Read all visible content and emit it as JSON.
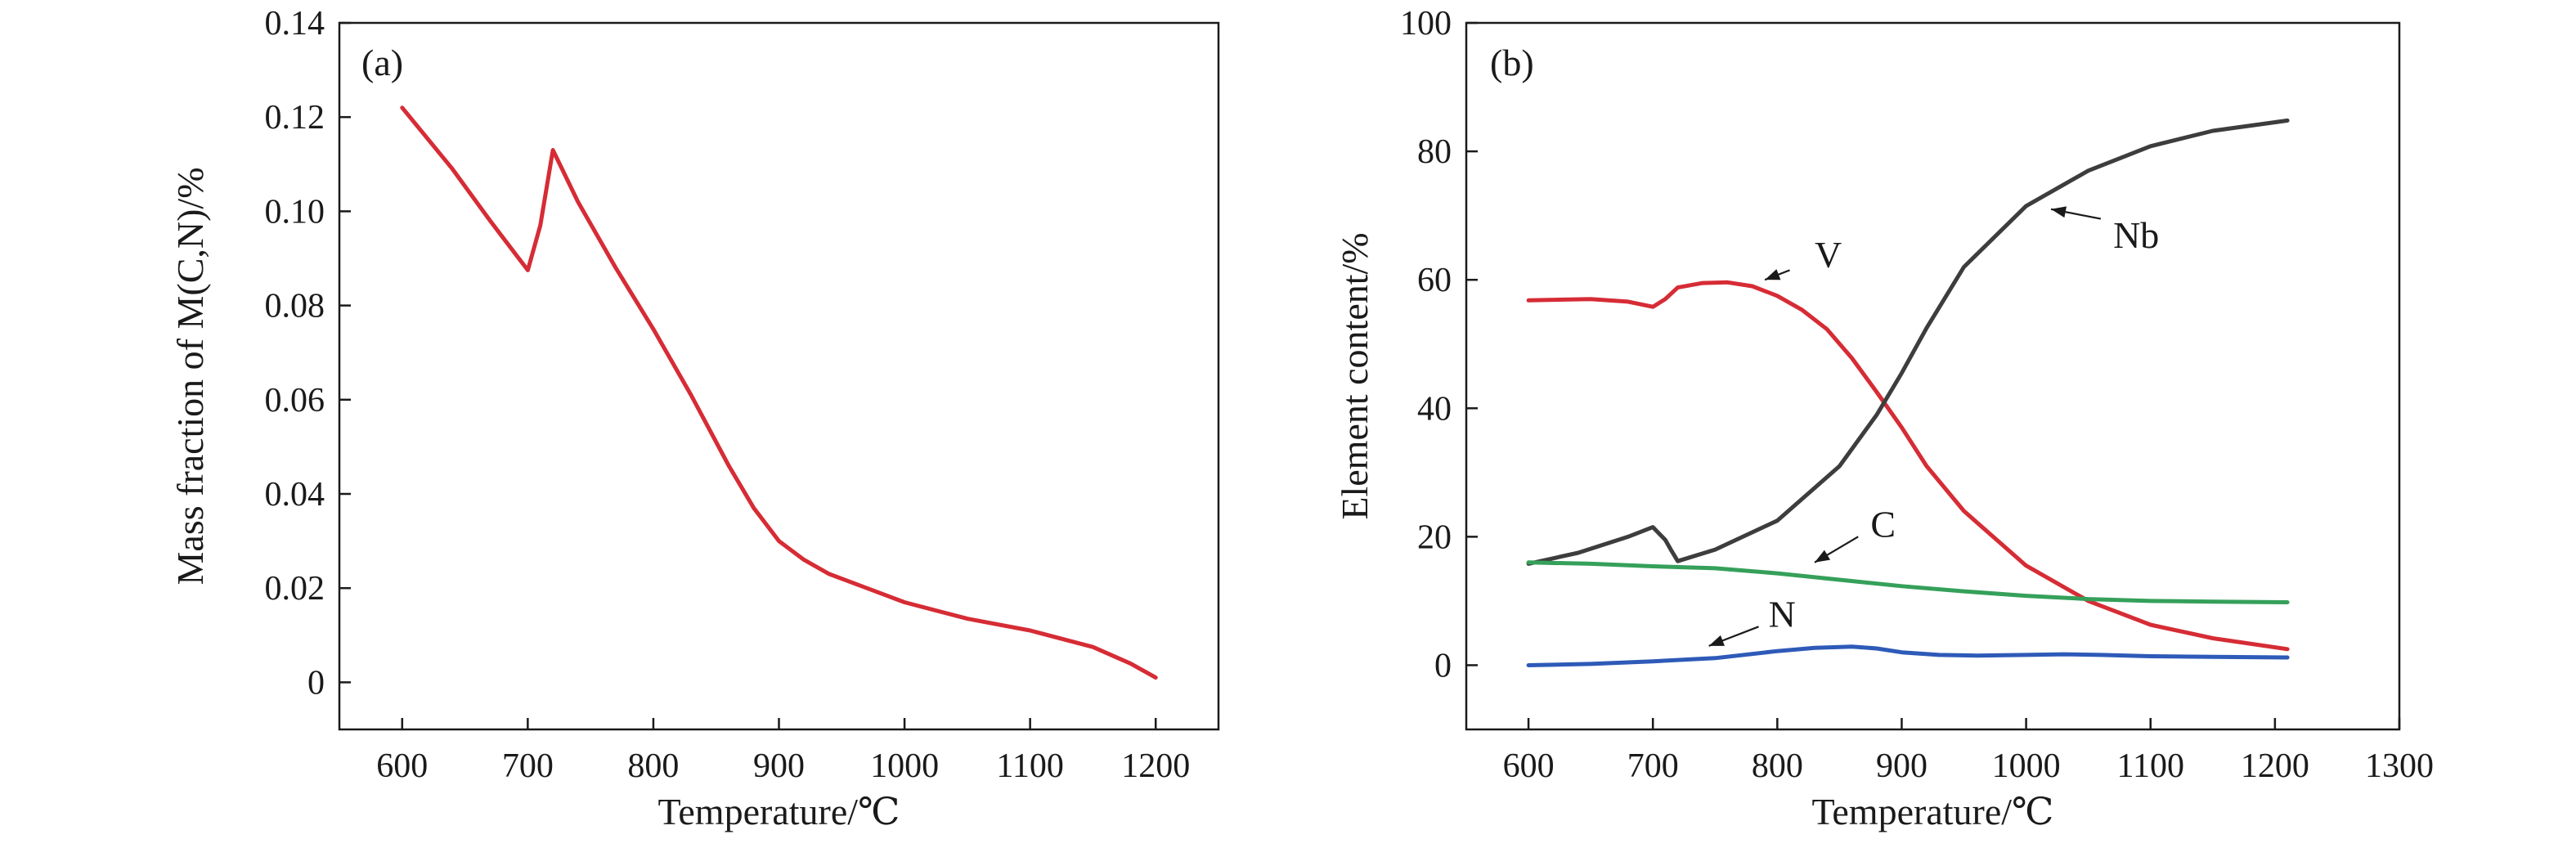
{
  "chart_data": [
    {
      "type": "line",
      "panel_label": "(a)",
      "xlabel": "Temperature/℃",
      "ylabel": "Mass fraction of M(C,N)/%",
      "xlim": [
        550,
        1250
      ],
      "ylim": [
        -0.01,
        0.14
      ],
      "xticks": [
        600,
        700,
        800,
        900,
        1000,
        1100,
        1200
      ],
      "xtick_labels": [
        "600",
        "700",
        "800",
        "900",
        "1000",
        "1100",
        "1200"
      ],
      "yticks": [
        0,
        0.02,
        0.04,
        0.06,
        0.08,
        0.1,
        0.12,
        0.14
      ],
      "ytick_labels": [
        "0",
        "0.02",
        "0.04",
        "0.06",
        "0.08",
        "0.10",
        "0.12",
        "0.14"
      ],
      "grid": false,
      "series": [
        {
          "color": "#d62c35",
          "x": [
            600,
            640,
            670,
            700,
            710,
            715,
            720,
            740,
            770,
            800,
            830,
            860,
            880,
            900,
            920,
            940,
            970,
            1000,
            1050,
            1100,
            1150,
            1180,
            1200
          ],
          "y": [
            0.122,
            0.109,
            0.098,
            0.0875,
            0.097,
            0.105,
            0.113,
            0.102,
            0.088,
            0.075,
            0.061,
            0.046,
            0.037,
            0.03,
            0.026,
            0.023,
            0.02,
            0.017,
            0.0135,
            0.011,
            0.0075,
            0.004,
            0.001
          ]
        }
      ]
    },
    {
      "type": "line",
      "panel_label": "(b)",
      "xlabel": "Temperature/℃",
      "ylabel": "Element content/%",
      "xlim": [
        550,
        1300
      ],
      "ylim": [
        -10,
        100
      ],
      "xticks": [
        600,
        700,
        800,
        900,
        1000,
        1100,
        1200,
        1300
      ],
      "xtick_labels": [
        "600",
        "700",
        "800",
        "900",
        "1000",
        "1100",
        "1200",
        "1300"
      ],
      "yticks": [
        0,
        20,
        40,
        60,
        80,
        100
      ],
      "ytick_labels": [
        "0",
        "20",
        "40",
        "60",
        "80",
        "100"
      ],
      "grid": false,
      "series": [
        {
          "name": "V",
          "color": "#d62c35",
          "x": [
            600,
            650,
            680,
            700,
            710,
            720,
            740,
            760,
            780,
            800,
            820,
            840,
            860,
            880,
            900,
            920,
            950,
            1000,
            1050,
            1100,
            1150,
            1210
          ],
          "y": [
            56.8,
            57.0,
            56.6,
            55.8,
            57.0,
            58.8,
            59.5,
            59.6,
            59.0,
            57.5,
            55.3,
            52.3,
            47.8,
            42.5,
            37.0,
            31.0,
            24.0,
            15.5,
            10.0,
            6.3,
            4.2,
            2.5
          ]
        },
        {
          "name": "Nb",
          "color": "#3d3d3d",
          "x": [
            600,
            640,
            680,
            700,
            710,
            715,
            720,
            750,
            800,
            850,
            880,
            900,
            920,
            950,
            1000,
            1050,
            1100,
            1150,
            1210
          ],
          "y": [
            15.8,
            17.5,
            20.0,
            21.5,
            19.5,
            17.8,
            16.2,
            18.0,
            22.5,
            31.0,
            39.0,
            45.5,
            52.5,
            62.0,
            71.5,
            77.0,
            80.8,
            83.2,
            84.8
          ]
        },
        {
          "name": "C",
          "color": "#35a05a",
          "x": [
            600,
            650,
            700,
            750,
            800,
            850,
            900,
            950,
            1000,
            1050,
            1100,
            1150,
            1210
          ],
          "y": [
            16.0,
            15.8,
            15.4,
            15.1,
            14.3,
            13.3,
            12.3,
            11.5,
            10.8,
            10.3,
            10.0,
            9.9,
            9.8
          ]
        },
        {
          "name": "N",
          "color": "#2e5ab8",
          "x": [
            600,
            650,
            700,
            750,
            800,
            830,
            860,
            880,
            900,
            930,
            960,
            1000,
            1030,
            1060,
            1100,
            1150,
            1210
          ],
          "y": [
            0.0,
            0.2,
            0.6,
            1.1,
            2.2,
            2.7,
            2.9,
            2.6,
            2.0,
            1.6,
            1.5,
            1.6,
            1.7,
            1.6,
            1.4,
            1.3,
            1.2
          ]
        }
      ],
      "annotations": [
        {
          "text": "V",
          "x": 830,
          "y": 64.0,
          "arrow_from": [
            810,
            61.5
          ],
          "arrow_to": [
            790,
            60.0
          ]
        },
        {
          "text": "Nb",
          "x": 1070,
          "y": 67.0,
          "arrow_from": [
            1060,
            69.5
          ],
          "arrow_to": [
            1020,
            71.0
          ]
        },
        {
          "text": "C",
          "x": 875,
          "y": 22.0,
          "arrow_from": [
            865,
            20.0
          ],
          "arrow_to": [
            830,
            16.0
          ]
        },
        {
          "text": "N",
          "x": 793,
          "y": 8.0,
          "arrow_from": [
            785,
            6.0
          ],
          "arrow_to": [
            745,
            3.0
          ]
        }
      ]
    }
  ]
}
